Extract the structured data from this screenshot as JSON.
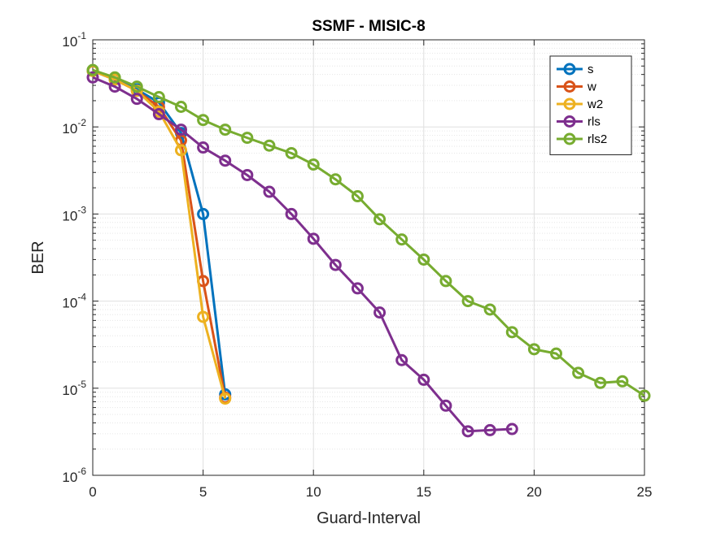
{
  "chart_data": {
    "type": "line",
    "title": "SSMF - MISIC-8",
    "xlabel": "Guard-Interval",
    "ylabel": "BER",
    "xlim": [
      0,
      25
    ],
    "ylim": [
      1e-06,
      0.1
    ],
    "yscale": "log",
    "grid": true,
    "legend_position": "top-right",
    "x_ticks": [
      {
        "value": 0,
        "label": "0"
      },
      {
        "value": 5,
        "label": "5"
      },
      {
        "value": 10,
        "label": "10"
      },
      {
        "value": 15,
        "label": "15"
      },
      {
        "value": 20,
        "label": "20"
      },
      {
        "value": 25,
        "label": "25"
      }
    ],
    "y_ticks": [
      {
        "value": 1e-06,
        "base": "10",
        "exp": "-6"
      },
      {
        "value": 1e-05,
        "base": "10",
        "exp": "-5"
      },
      {
        "value": 0.0001,
        "base": "10",
        "exp": "-4"
      },
      {
        "value": 0.001,
        "base": "10",
        "exp": "-3"
      },
      {
        "value": 0.01,
        "base": "10",
        "exp": "-2"
      },
      {
        "value": 0.1,
        "base": "10",
        "exp": "-1"
      }
    ],
    "series": [
      {
        "name": "s",
        "color": "#0072BD",
        "x": [
          0,
          1,
          2,
          3,
          4,
          5,
          6
        ],
        "y": [
          0.044,
          0.035,
          0.027,
          0.019,
          0.0085,
          0.001,
          8.5e-06
        ]
      },
      {
        "name": "w",
        "color": "#D95319",
        "x": [
          0,
          1,
          2,
          3,
          4,
          5,
          6
        ],
        "y": [
          0.044,
          0.035,
          0.026,
          0.017,
          0.007,
          0.00017,
          7.8e-06
        ]
      },
      {
        "name": "w2",
        "color": "#EDB120",
        "x": [
          0,
          1,
          2,
          3,
          4,
          5,
          6
        ],
        "y": [
          0.044,
          0.035,
          0.026,
          0.015,
          0.0054,
          6.6e-05,
          7.6e-06
        ]
      },
      {
        "name": "rls",
        "color": "#7E2F8E",
        "x": [
          0,
          1,
          2,
          3,
          4,
          5,
          6,
          7,
          8,
          9,
          10,
          11,
          12,
          13,
          14,
          15,
          16,
          17,
          18,
          19
        ],
        "y": [
          0.037,
          0.029,
          0.021,
          0.014,
          0.0093,
          0.0058,
          0.0041,
          0.0028,
          0.0018,
          0.001,
          0.00052,
          0.00026,
          0.00014,
          7.4e-05,
          2.1e-05,
          1.25e-05,
          6.3e-06,
          3.2e-06,
          3.3e-06,
          3.4e-06
        ]
      },
      {
        "name": "rls2",
        "color": "#77AC30",
        "x": [
          0,
          1,
          2,
          3,
          4,
          5,
          6,
          7,
          8,
          9,
          10,
          11,
          12,
          13,
          14,
          15,
          16,
          17,
          18,
          19,
          20,
          21,
          22,
          23,
          24,
          25
        ],
        "y": [
          0.045,
          0.037,
          0.029,
          0.022,
          0.017,
          0.012,
          0.0093,
          0.0075,
          0.0061,
          0.005,
          0.0037,
          0.0025,
          0.0016,
          0.00087,
          0.00051,
          0.0003,
          0.00017,
          0.0001,
          8e-05,
          4.4e-05,
          2.8e-05,
          2.5e-05,
          1.5e-05,
          1.15e-05,
          1.2e-05,
          8.2e-06
        ]
      }
    ]
  }
}
